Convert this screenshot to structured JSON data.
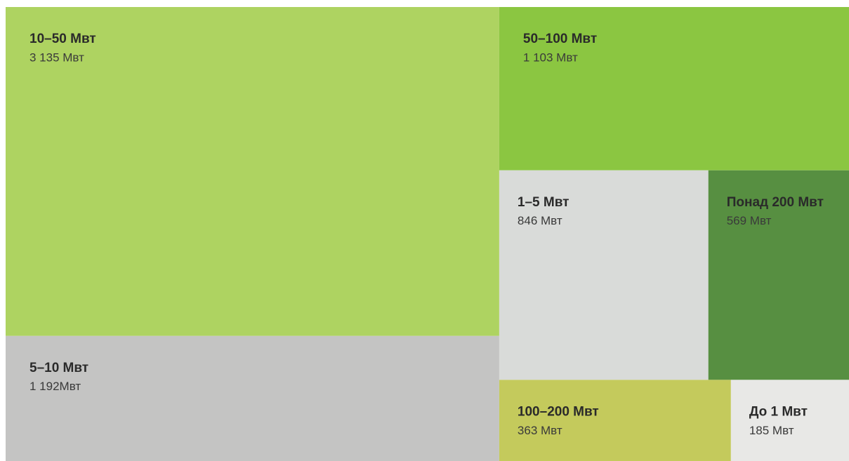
{
  "chart_data": {
    "type": "treemap",
    "categories": [
      "10–50 Мвт",
      "5–10 Мвт",
      "50–100 Мвт",
      "1–5 Мвт",
      "Понад 200 Мвт",
      "100–200 Мвт",
      "До 1 Мвт"
    ],
    "values": [
      3135,
      1192,
      1103,
      846,
      569,
      363,
      185
    ],
    "value_labels": [
      "3 135 Мвт",
      "1 192Мвт",
      "1 103 Мвт",
      "846 Мвт",
      "569 Мвт",
      "363 Мвт",
      "185 Мвт"
    ],
    "colors": [
      "#aed361",
      "#c4c4c3",
      "#8bc641",
      "#d9dbd9",
      "#578f41",
      "#c4ca5c",
      "#e8e8e6"
    ]
  }
}
